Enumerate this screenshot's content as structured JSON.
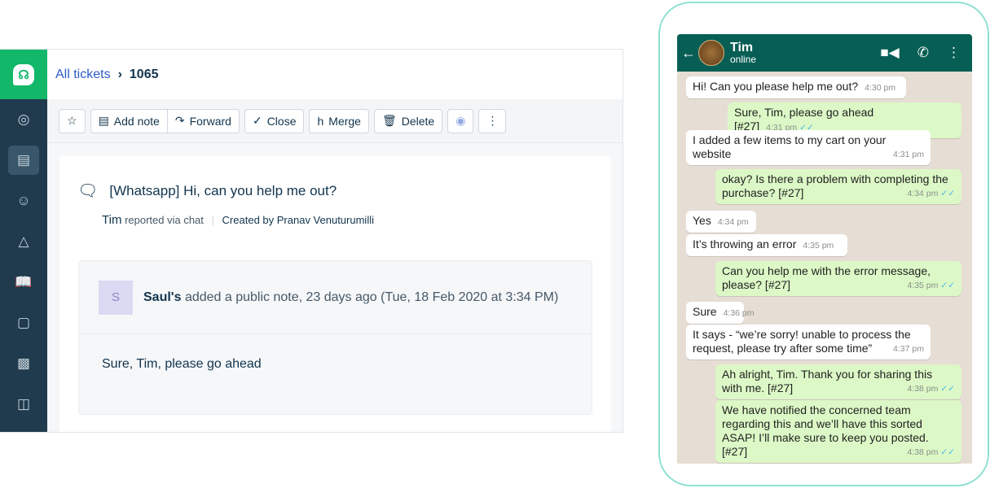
{
  "breadcrumb": {
    "link": "All tickets",
    "current": "1065"
  },
  "sidebar": {
    "icons": [
      "dashboard-icon",
      "tickets-icon",
      "contacts-icon",
      "groups-icon",
      "knowledge-base-icon",
      "chat-icon",
      "bot-icon",
      "reports-icon"
    ]
  },
  "toolbar": {
    "add_note": "Add note",
    "forward": "Forward",
    "close": "Close",
    "merge": "Merge",
    "delete": "Delete"
  },
  "ticket": {
    "channel": "[Whatsapp]",
    "subject": "Hi, can you help me out?",
    "requester": "Tim",
    "reported": "reported via chat",
    "created": "Created by Pranav Venuturumilli",
    "note": {
      "avatar": "S",
      "author": "Saul's",
      "action": "added a public note, 23 days ago (Tue, 18 Feb 2020 at 3:34 PM)",
      "body": "Sure, Tim, please go ahead"
    }
  },
  "whatsapp": {
    "contact": "Tim",
    "status": "online",
    "colors": {
      "header": "#075e54",
      "outgoing": "#dcf8c6",
      "incoming": "#ffffff"
    },
    "messages": [
      {
        "dir": "in",
        "text": "Hi! Can you please help me out?",
        "time": "4:30 pm"
      },
      {
        "dir": "out",
        "text": "Sure, Tim, please go ahead [#27]",
        "time": "4:31 pm"
      },
      {
        "dir": "in",
        "text": "I added a few items to my cart on your website",
        "time": "4:31 pm"
      },
      {
        "dir": "out",
        "text": "okay? Is there a problem with completing the purchase? [#27]",
        "time": "4:34 pm"
      },
      {
        "dir": "in",
        "text": "Yes",
        "time": "4:34 pm"
      },
      {
        "dir": "in",
        "text": "It’s throwing an error",
        "time": "4:35 pm"
      },
      {
        "dir": "out",
        "text": "Can you help me with the error message, please? [#27]",
        "time": "4:35 pm"
      },
      {
        "dir": "in",
        "text": "Sure",
        "time": "4:36 pm"
      },
      {
        "dir": "in",
        "text": "It says - “we’re sorry! unable to process the request, please try after some time”",
        "time": "4:37 pm"
      },
      {
        "dir": "out",
        "text": "Ah alright, Tim. Thank you for sharing this with me. [#27]",
        "time": "4:38 pm"
      },
      {
        "dir": "out",
        "text": "We have notified the concerned team regarding this and we’ll have this sorted ASAP! I’ll make sure to keep you posted. [#27]",
        "time": "4:38 pm"
      }
    ]
  }
}
